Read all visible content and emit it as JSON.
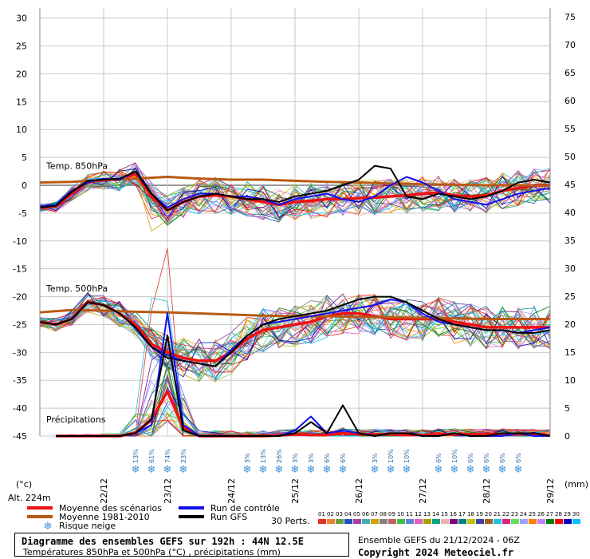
{
  "header": {
    "left_unit": "(°c)",
    "right_unit": "(mm)",
    "altitude": "Alt. 224m"
  },
  "legend": {
    "items": [
      {
        "label": "Moyenne des scénarios",
        "color": "#ee1111"
      },
      {
        "label": "Moyenne 1981-2010",
        "color": "#b85a14"
      },
      {
        "label": "Risque neige",
        "icon": "snowflake-icon"
      },
      {
        "label": "Run de contrôle",
        "color": "#1111ee"
      },
      {
        "label": "Run GFS",
        "color": "#000000"
      }
    ],
    "perts_label": "30 Perts.",
    "perts_numbers": [
      "01",
      "02",
      "03",
      "04",
      "05",
      "06",
      "07",
      "08",
      "09",
      "10",
      "11",
      "12",
      "13",
      "14",
      "15",
      "16",
      "17",
      "18",
      "19",
      "20",
      "21",
      "22",
      "23",
      "24",
      "25",
      "26",
      "27",
      "28",
      "29",
      "30"
    ],
    "perts_colors": [
      "#e0302a",
      "#f08030",
      "#60a040",
      "#2050c0",
      "#a040a0",
      "#40b0b0",
      "#d0a000",
      "#808080",
      "#c06060",
      "#40c040",
      "#6080e0",
      "#e060c0",
      "#a0a000",
      "#00a080",
      "#f0b0b0",
      "#800080",
      "#008080",
      "#c0c000",
      "#4040a0",
      "#a06020",
      "#20c0e0",
      "#e02080",
      "#60e060",
      "#a0a0ff",
      "#ff8000",
      "#c080ff",
      "#008000",
      "#ff0000",
      "#0000c0",
      "#00c0ff"
    ]
  },
  "footer": {
    "title": "Diagramme des ensembles GEFS sur 192h : 44N 12.5E",
    "subtitle": "Températures 850hPa et 500hPa (°C) , précipitations (mm)",
    "ensemble": "Ensemble GEFS du 21/12/2024 - 06Z",
    "copyright": "Copyright 2024 Meteociel.fr"
  },
  "chart_data": {
    "type": "line",
    "left_axis": {
      "ticks": [
        30,
        25,
        20,
        15,
        10,
        5,
        0,
        -5,
        -10,
        -15,
        -20,
        -25,
        -30,
        -35,
        -40,
        -45
      ],
      "range": [
        -45,
        30
      ]
    },
    "right_axis": {
      "ticks": [
        75,
        70,
        65,
        60,
        55,
        50,
        45,
        40,
        35,
        30,
        25,
        20,
        15,
        10,
        5,
        0
      ],
      "range": [
        0,
        75
      ]
    },
    "x_axis": {
      "labels": [
        "22/12",
        "23/12",
        "24/12",
        "25/12",
        "26/12",
        "27/12",
        "28/12",
        "29/12"
      ],
      "range_hours": [
        0,
        192
      ],
      "step_hours": 6
    },
    "annotations": [
      {
        "text": "Temp. 850hPa",
        "y": 2.5
      },
      {
        "text": "Temp. 500hPa",
        "y": -19.5
      },
      {
        "text": "Précipitations",
        "y": -43
      }
    ],
    "snow_risk": [
      {
        "hour": 36,
        "label": "13%"
      },
      {
        "hour": 42,
        "label": "61%"
      },
      {
        "hour": 48,
        "label": "74%"
      },
      {
        "hour": 54,
        "label": "23%"
      },
      {
        "hour": 78,
        "label": "3%"
      },
      {
        "hour": 84,
        "label": "13%"
      },
      {
        "hour": 90,
        "label": "26%"
      },
      {
        "hour": 96,
        "label": "3%"
      },
      {
        "hour": 102,
        "label": "3%"
      },
      {
        "hour": 108,
        "label": "6%"
      },
      {
        "hour": 114,
        "label": "6%"
      },
      {
        "hour": 126,
        "label": "3%"
      },
      {
        "hour": 132,
        "label": "10%"
      },
      {
        "hour": 138,
        "label": "10%"
      },
      {
        "hour": 150,
        "label": "6%"
      },
      {
        "hour": 156,
        "label": "10%"
      },
      {
        "hour": 162,
        "label": "6%"
      },
      {
        "hour": 168,
        "label": "6%"
      },
      {
        "hour": 174,
        "label": "6%"
      },
      {
        "hour": 180,
        "label": "6%"
      }
    ],
    "series": [
      {
        "name": "Moyenne des scénarios",
        "group": "t850",
        "color": "#ee1111",
        "x": [
          0,
          6,
          12,
          18,
          24,
          30,
          36,
          42,
          48,
          54,
          60,
          66,
          72,
          78,
          84,
          90,
          96,
          102,
          108,
          114,
          120,
          126,
          132,
          138,
          144,
          150,
          156,
          162,
          168,
          174,
          180,
          186,
          192
        ],
        "values": [
          -4.0,
          -3.8,
          -1.5,
          0.5,
          1.0,
          1.0,
          2.0,
          -2.0,
          -4.5,
          -3.0,
          -2.0,
          -1.8,
          -2.0,
          -2.5,
          -3.0,
          -3.5,
          -3.0,
          -2.8,
          -2.5,
          -2.5,
          -2.3,
          -2.2,
          -2.0,
          -1.8,
          -1.5,
          -1.3,
          -1.8,
          -2.0,
          -1.8,
          -1.0,
          -0.5,
          0.0,
          0.0
        ]
      },
      {
        "name": "Moyenne 1981-2010",
        "group": "t850",
        "color": "#b85a14",
        "x": [
          0,
          12,
          24,
          36,
          48,
          60,
          72,
          84,
          96,
          108,
          120,
          132,
          144,
          156,
          168,
          180,
          192
        ],
        "values": [
          0.5,
          0.6,
          1.0,
          1.2,
          1.5,
          1.2,
          1.0,
          1.0,
          0.8,
          0.6,
          0.5,
          0.3,
          0.2,
          0.1,
          0.0,
          0.0,
          -0.1
        ]
      },
      {
        "name": "Run de contrôle",
        "group": "t850",
        "color": "#1111ee",
        "x": [
          0,
          6,
          12,
          18,
          24,
          30,
          36,
          42,
          48,
          54,
          60,
          66,
          72,
          78,
          84,
          90,
          96,
          102,
          108,
          114,
          120,
          126,
          132,
          138,
          144,
          150,
          156,
          162,
          168,
          174,
          180,
          186,
          192
        ],
        "values": [
          -3.8,
          -3.5,
          -1.0,
          0.5,
          1.2,
          1.0,
          2.5,
          -1.5,
          -4.0,
          -2.5,
          -1.5,
          -1.5,
          -2.0,
          -2.0,
          -2.5,
          -3.5,
          -2.5,
          -2.0,
          -1.5,
          -2.5,
          -3.0,
          -2.0,
          0.0,
          1.5,
          0.5,
          -1.0,
          -2.5,
          -3.0,
          -3.5,
          -2.5,
          -1.5,
          -1.0,
          -0.5
        ]
      },
      {
        "name": "Run GFS",
        "group": "t850",
        "color": "#000000",
        "x": [
          0,
          6,
          12,
          18,
          24,
          30,
          36,
          42,
          48,
          54,
          60,
          66,
          72,
          78,
          84,
          90,
          96,
          102,
          108,
          114,
          120,
          126,
          132,
          138,
          144,
          150,
          156,
          162,
          168,
          174,
          180,
          186,
          192
        ],
        "values": [
          -4.0,
          -3.7,
          -1.2,
          0.8,
          1.0,
          1.2,
          2.5,
          -1.5,
          -4.5,
          -3.0,
          -2.0,
          -1.5,
          -2.0,
          -2.5,
          -2.5,
          -3.0,
          -2.0,
          -1.5,
          -1.0,
          0.0,
          1.0,
          3.5,
          3.0,
          -2.0,
          -2.5,
          -1.5,
          -2.0,
          -2.5,
          -2.0,
          -1.0,
          0.5,
          1.0,
          0.5
        ]
      },
      {
        "name": "Moyenne des scénarios",
        "group": "t500",
        "color": "#ee1111",
        "x": [
          0,
          6,
          12,
          18,
          24,
          30,
          36,
          42,
          48,
          54,
          60,
          66,
          72,
          78,
          84,
          90,
          96,
          102,
          108,
          114,
          120,
          126,
          132,
          138,
          144,
          150,
          156,
          162,
          168,
          174,
          180,
          186,
          192
        ],
        "values": [
          -24.5,
          -25.0,
          -24.0,
          -21.0,
          -21.5,
          -23.0,
          -25.0,
          -28.5,
          -30.0,
          -31.0,
          -31.5,
          -31.5,
          -30.0,
          -27.5,
          -26.0,
          -25.5,
          -25.0,
          -24.5,
          -23.5,
          -23.0,
          -23.0,
          -23.5,
          -24.0,
          -24.0,
          -24.0,
          -24.0,
          -24.5,
          -25.0,
          -25.5,
          -25.5,
          -25.5,
          -25.5,
          -25.5
        ]
      },
      {
        "name": "Moyenne 1981-2010",
        "group": "t500",
        "color": "#b85a14",
        "x": [
          0,
          12,
          24,
          36,
          48,
          60,
          72,
          84,
          96,
          108,
          120,
          132,
          144,
          156,
          168,
          180,
          192
        ],
        "values": [
          -22.8,
          -22.4,
          -22.5,
          -22.7,
          -22.8,
          -23.0,
          -23.2,
          -23.4,
          -23.5,
          -23.5,
          -23.6,
          -23.7,
          -23.8,
          -23.9,
          -24.0,
          -24.0,
          -24.0
        ]
      },
      {
        "name": "Run de contrôle",
        "group": "t500",
        "color": "#1111ee",
        "x": [
          0,
          6,
          12,
          18,
          24,
          30,
          36,
          42,
          48,
          54,
          60,
          66,
          72,
          78,
          84,
          90,
          96,
          102,
          108,
          114,
          120,
          126,
          132,
          138,
          144,
          150,
          156,
          162,
          168,
          174,
          180,
          186,
          192
        ],
        "values": [
          -24.5,
          -25.0,
          -24.0,
          -21.0,
          -21.5,
          -23.0,
          -25.5,
          -29.0,
          -30.5,
          -31.5,
          -32.0,
          -32.5,
          -29.5,
          -27.0,
          -25.0,
          -24.5,
          -24.0,
          -23.5,
          -23.0,
          -22.5,
          -22.0,
          -21.5,
          -20.5,
          -21.0,
          -23.0,
          -24.5,
          -25.0,
          -25.5,
          -26.0,
          -26.0,
          -26.5,
          -26.0,
          -25.5
        ]
      },
      {
        "name": "Run GFS",
        "group": "t500",
        "color": "#000000",
        "x": [
          0,
          6,
          12,
          18,
          24,
          30,
          36,
          42,
          48,
          54,
          60,
          66,
          72,
          78,
          84,
          90,
          96,
          102,
          108,
          114,
          120,
          126,
          132,
          138,
          144,
          150,
          156,
          162,
          168,
          174,
          180,
          186,
          192
        ],
        "values": [
          -24.5,
          -25.0,
          -24.0,
          -21.0,
          -21.5,
          -23.0,
          -25.5,
          -29.0,
          -31.0,
          -31.5,
          -32.0,
          -32.5,
          -30.0,
          -27.0,
          -25.0,
          -24.0,
          -23.5,
          -23.0,
          -22.5,
          -21.5,
          -20.5,
          -20.0,
          -20.0,
          -21.0,
          -22.5,
          -24.0,
          -25.0,
          -25.5,
          -26.0,
          -26.0,
          -26.5,
          -26.5,
          -26.0
        ]
      },
      {
        "name": "Moyenne des scénarios",
        "group": "precip",
        "color": "#ee1111",
        "x": [
          6,
          12,
          18,
          24,
          30,
          36,
          42,
          48,
          54,
          60,
          66,
          72,
          78,
          84,
          90,
          96,
          102,
          108,
          114,
          120,
          126,
          132,
          138,
          144,
          150,
          156,
          162,
          168,
          174,
          180,
          186,
          192
        ],
        "values": [
          0,
          0,
          0,
          0,
          0,
          0.5,
          3.0,
          8.0,
          1.5,
          0,
          0,
          0,
          0,
          0,
          0.1,
          0.3,
          0.2,
          0.2,
          0.5,
          0.3,
          0.3,
          0.3,
          0.2,
          0.2,
          0.3,
          0.3,
          0.3,
          0.3,
          0.4,
          0.3,
          0.3,
          0.2
        ]
      },
      {
        "name": "Run de contrôle",
        "group": "precip",
        "color": "#1111ee",
        "x": [
          6,
          12,
          18,
          24,
          30,
          36,
          42,
          48,
          54,
          60,
          66,
          72,
          78,
          84,
          90,
          96,
          102,
          108,
          114,
          120,
          126,
          132,
          138,
          144,
          150,
          156,
          162,
          168,
          174,
          180,
          186,
          192
        ],
        "values": [
          0,
          0,
          0,
          0,
          0,
          0.5,
          2.0,
          22.0,
          2.0,
          0,
          0,
          0,
          0,
          0,
          0,
          1.0,
          3.5,
          0.5,
          1.0,
          0.5,
          0,
          0.5,
          0.5,
          0,
          0,
          0.5,
          0,
          0,
          0,
          0.5,
          0,
          0
        ]
      },
      {
        "name": "Run GFS",
        "group": "precip",
        "color": "#000000",
        "x": [
          6,
          12,
          18,
          24,
          30,
          36,
          42,
          48,
          54,
          60,
          66,
          72,
          78,
          84,
          90,
          96,
          102,
          108,
          114,
          120,
          126,
          132,
          138,
          144,
          150,
          156,
          162,
          168,
          174,
          180,
          186,
          192
        ],
        "values": [
          0,
          0,
          0,
          0,
          0,
          0.5,
          3.0,
          18.0,
          1.0,
          0,
          0,
          0,
          0,
          0,
          0,
          0.5,
          2.5,
          0.5,
          5.5,
          0.5,
          0,
          0.5,
          0.5,
          0,
          0,
          0.5,
          0,
          0,
          0.5,
          0.5,
          0.5,
          0
        ]
      }
    ]
  }
}
